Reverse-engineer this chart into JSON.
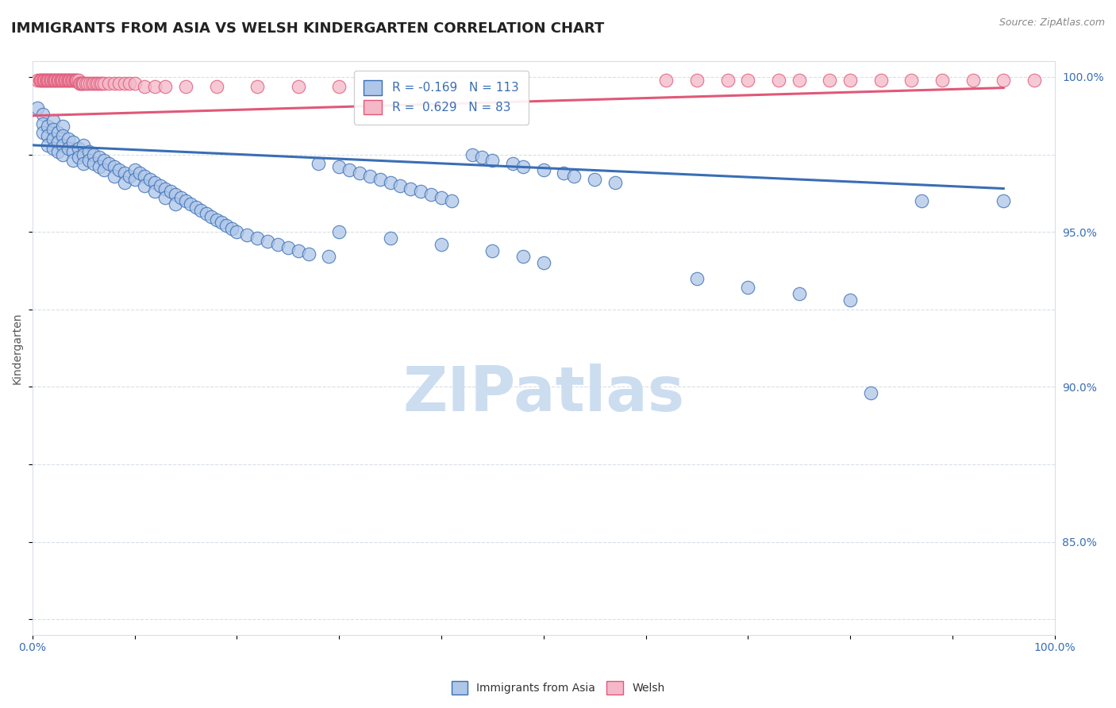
{
  "title": "IMMIGRANTS FROM ASIA VS WELSH KINDERGARTEN CORRELATION CHART",
  "source": "Source: ZipAtlas.com",
  "ylabel": "Kindergarten",
  "xlim": [
    0.0,
    1.0
  ],
  "ylim": [
    0.82,
    1.005
  ],
  "x_ticks": [
    0.0,
    0.1,
    0.2,
    0.3,
    0.4,
    0.5,
    0.6,
    0.7,
    0.8,
    0.9,
    1.0
  ],
  "x_tick_labels": [
    "0.0%",
    "",
    "",
    "",
    "",
    "",
    "",
    "",
    "",
    "",
    "100.0%"
  ],
  "y_tick_labels_right": [
    "100.0%",
    "95.0%",
    "90.0%",
    "85.0%"
  ],
  "y_tick_positions_right": [
    1.0,
    0.95,
    0.9,
    0.85
  ],
  "legend_blue_label": "Immigrants from Asia",
  "legend_pink_label": "Welsh",
  "R_blue": -0.169,
  "N_blue": 113,
  "R_pink": 0.629,
  "N_pink": 83,
  "blue_color": "#aec6e8",
  "pink_color": "#f4b8c8",
  "blue_line_color": "#3a6eb5",
  "pink_line_color": "#e05878",
  "watermark": "ZIPatlas",
  "watermark_color": "#ccddf0",
  "blue_scatter_x": [
    0.005,
    0.01,
    0.01,
    0.01,
    0.015,
    0.015,
    0.015,
    0.02,
    0.02,
    0.02,
    0.02,
    0.025,
    0.025,
    0.025,
    0.03,
    0.03,
    0.03,
    0.03,
    0.035,
    0.035,
    0.04,
    0.04,
    0.04,
    0.045,
    0.045,
    0.05,
    0.05,
    0.05,
    0.055,
    0.055,
    0.06,
    0.06,
    0.065,
    0.065,
    0.07,
    0.07,
    0.075,
    0.08,
    0.08,
    0.085,
    0.09,
    0.09,
    0.095,
    0.1,
    0.1,
    0.105,
    0.11,
    0.11,
    0.115,
    0.12,
    0.12,
    0.125,
    0.13,
    0.13,
    0.135,
    0.14,
    0.14,
    0.145,
    0.15,
    0.155,
    0.16,
    0.165,
    0.17,
    0.175,
    0.18,
    0.185,
    0.19,
    0.195,
    0.2,
    0.21,
    0.22,
    0.23,
    0.24,
    0.25,
    0.26,
    0.27,
    0.28,
    0.29,
    0.3,
    0.31,
    0.32,
    0.33,
    0.34,
    0.35,
    0.36,
    0.37,
    0.38,
    0.39,
    0.4,
    0.41,
    0.43,
    0.44,
    0.45,
    0.47,
    0.48,
    0.5,
    0.52,
    0.53,
    0.55,
    0.57,
    0.3,
    0.35,
    0.4,
    0.45,
    0.48,
    0.5,
    0.82,
    0.65,
    0.7,
    0.75,
    0.8,
    0.87,
    0.95
  ],
  "blue_scatter_y": [
    0.99,
    0.988,
    0.985,
    0.982,
    0.984,
    0.981,
    0.978,
    0.986,
    0.983,
    0.98,
    0.977,
    0.982,
    0.979,
    0.976,
    0.984,
    0.981,
    0.978,
    0.975,
    0.98,
    0.977,
    0.979,
    0.976,
    0.973,
    0.977,
    0.974,
    0.978,
    0.975,
    0.972,
    0.976,
    0.973,
    0.975,
    0.972,
    0.974,
    0.971,
    0.973,
    0.97,
    0.972,
    0.971,
    0.968,
    0.97,
    0.969,
    0.966,
    0.968,
    0.97,
    0.967,
    0.969,
    0.968,
    0.965,
    0.967,
    0.966,
    0.963,
    0.965,
    0.964,
    0.961,
    0.963,
    0.962,
    0.959,
    0.961,
    0.96,
    0.959,
    0.958,
    0.957,
    0.956,
    0.955,
    0.954,
    0.953,
    0.952,
    0.951,
    0.95,
    0.949,
    0.948,
    0.947,
    0.946,
    0.945,
    0.944,
    0.943,
    0.972,
    0.942,
    0.971,
    0.97,
    0.969,
    0.968,
    0.967,
    0.966,
    0.965,
    0.964,
    0.963,
    0.962,
    0.961,
    0.96,
    0.975,
    0.974,
    0.973,
    0.972,
    0.971,
    0.97,
    0.969,
    0.968,
    0.967,
    0.966,
    0.95,
    0.948,
    0.946,
    0.944,
    0.942,
    0.94,
    0.898,
    0.935,
    0.932,
    0.93,
    0.928,
    0.96,
    0.96
  ],
  "pink_scatter_x": [
    0.005,
    0.007,
    0.008,
    0.009,
    0.01,
    0.011,
    0.012,
    0.013,
    0.014,
    0.015,
    0.016,
    0.017,
    0.018,
    0.019,
    0.02,
    0.021,
    0.022,
    0.023,
    0.024,
    0.025,
    0.026,
    0.027,
    0.028,
    0.029,
    0.03,
    0.031,
    0.032,
    0.033,
    0.034,
    0.035,
    0.036,
    0.037,
    0.038,
    0.039,
    0.04,
    0.041,
    0.042,
    0.043,
    0.044,
    0.045,
    0.046,
    0.047,
    0.048,
    0.049,
    0.05,
    0.052,
    0.054,
    0.056,
    0.058,
    0.06,
    0.062,
    0.064,
    0.066,
    0.068,
    0.07,
    0.075,
    0.08,
    0.085,
    0.09,
    0.095,
    0.1,
    0.11,
    0.12,
    0.13,
    0.15,
    0.18,
    0.22,
    0.26,
    0.3,
    0.62,
    0.65,
    0.68,
    0.7,
    0.73,
    0.75,
    0.78,
    0.8,
    0.83,
    0.86,
    0.89,
    0.92,
    0.95,
    0.98
  ],
  "pink_scatter_y": [
    0.999,
    0.999,
    0.999,
    0.999,
    0.999,
    0.999,
    0.999,
    0.999,
    0.999,
    0.999,
    0.999,
    0.999,
    0.999,
    0.999,
    0.999,
    0.999,
    0.999,
    0.999,
    0.999,
    0.999,
    0.999,
    0.999,
    0.999,
    0.999,
    0.999,
    0.999,
    0.999,
    0.999,
    0.999,
    0.999,
    0.999,
    0.999,
    0.999,
    0.999,
    0.999,
    0.999,
    0.999,
    0.999,
    0.999,
    0.999,
    0.998,
    0.998,
    0.998,
    0.998,
    0.998,
    0.998,
    0.998,
    0.998,
    0.998,
    0.998,
    0.998,
    0.998,
    0.998,
    0.998,
    0.998,
    0.998,
    0.998,
    0.998,
    0.998,
    0.998,
    0.998,
    0.997,
    0.997,
    0.997,
    0.997,
    0.997,
    0.997,
    0.997,
    0.997,
    0.999,
    0.999,
    0.999,
    0.999,
    0.999,
    0.999,
    0.999,
    0.999,
    0.999,
    0.999,
    0.999,
    0.999,
    0.999,
    0.999
  ],
  "blue_trend_x": [
    0.0,
    0.95
  ],
  "blue_trend_y": [
    0.978,
    0.964
  ],
  "pink_trend_x": [
    0.0,
    0.95
  ],
  "pink_trend_y": [
    0.9875,
    0.9965
  ],
  "grid_color": "#d8dfe8",
  "background_color": "#ffffff",
  "title_fontsize": 13,
  "axis_fontsize": 10,
  "legend_fontsize": 11
}
